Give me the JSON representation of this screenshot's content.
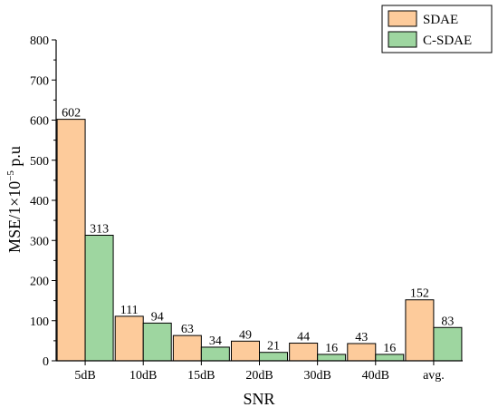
{
  "chart_data": {
    "type": "bar",
    "title": "",
    "xlabel": "SNR",
    "ylabel": {
      "main": "MSE/1×10",
      "sup": "−5",
      "unit": " p.u"
    },
    "ylim": [
      0,
      800
    ],
    "yticks": [
      0,
      100,
      200,
      300,
      400,
      500,
      600,
      700,
      800
    ],
    "categories": [
      "5dB",
      "10dB",
      "15dB",
      "20dB",
      "30dB",
      "40dB",
      "avg."
    ],
    "series": [
      {
        "name": "SDAE",
        "color": "#FDCB9B",
        "values": [
          602,
          111,
          63,
          49,
          44,
          43,
          152
        ]
      },
      {
        "name": "C-SDAE",
        "color": "#9ED6A0",
        "values": [
          313,
          94,
          34,
          21,
          16,
          16,
          83
        ]
      }
    ],
    "legend": "top-right",
    "grid": false
  }
}
